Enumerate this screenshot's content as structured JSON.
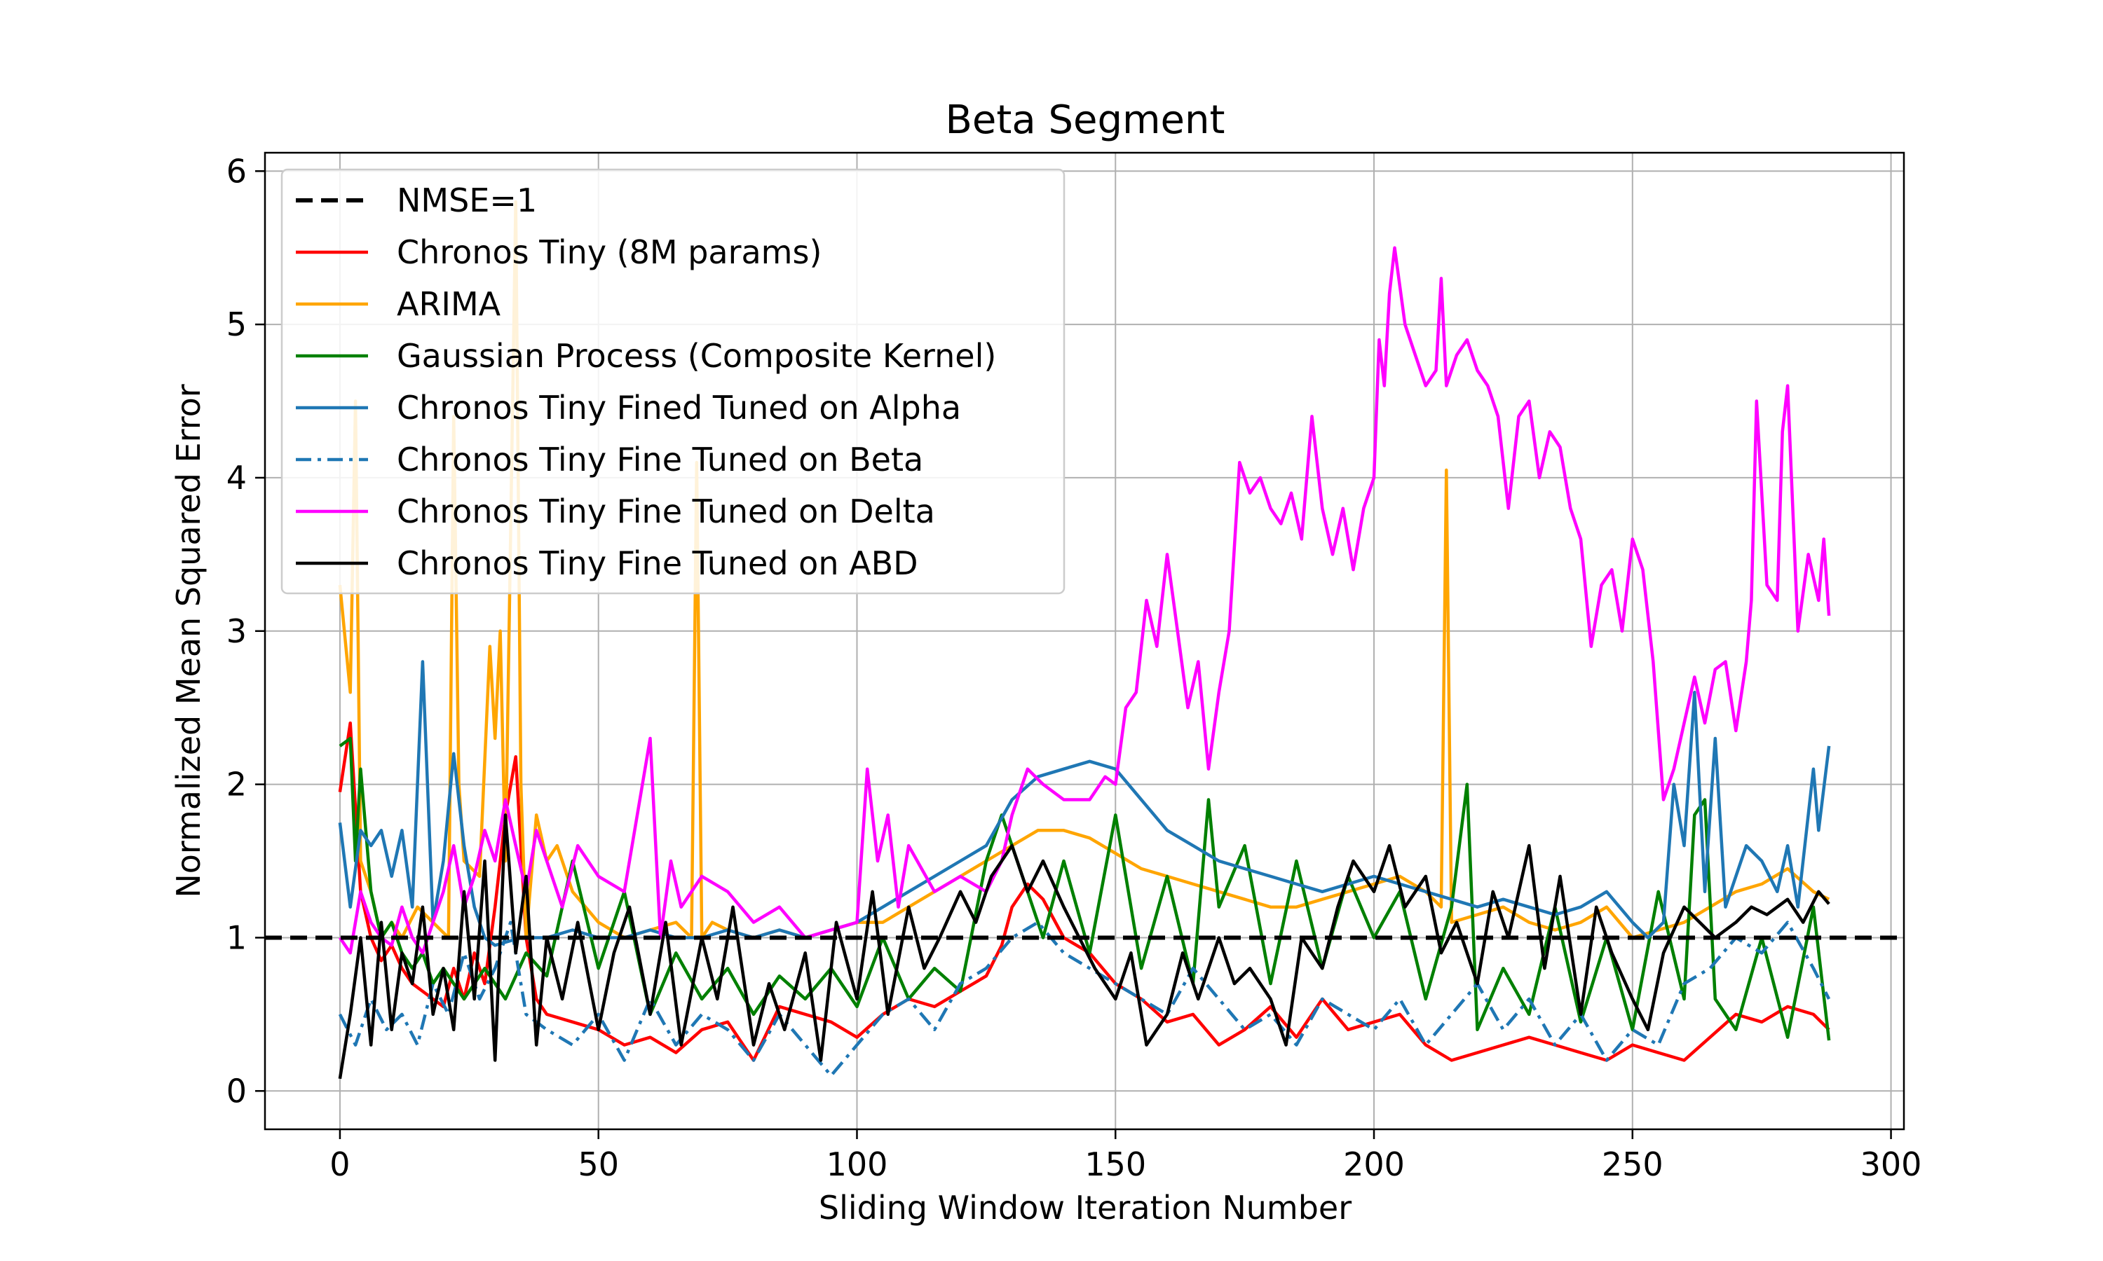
{
  "chart_data": {
    "type": "line",
    "title": "Beta Segment",
    "xlabel": "Sliding Window Iteration Number",
    "ylabel": "Normalized Mean Squared Error",
    "xlim": [
      -14.5,
      302.5
    ],
    "ylim": [
      -0.25,
      6.12
    ],
    "xticks": [
      0,
      50,
      100,
      150,
      200,
      250,
      300
    ],
    "yticks": [
      0,
      1,
      2,
      3,
      4,
      5,
      6
    ],
    "grid": true,
    "legend_position": "upper left",
    "reference_line": {
      "name": "NMSE=1",
      "y": 1,
      "color": "#000000",
      "style": "dashed"
    },
    "series": [
      {
        "name": "Chronos Tiny (8M params)",
        "color": "#ff0000",
        "style": "solid",
        "x": [
          0,
          2,
          4,
          6,
          8,
          10,
          12,
          14,
          16,
          18,
          20,
          22,
          24,
          26,
          28,
          30,
          32,
          34,
          36,
          38,
          40,
          45,
          50,
          55,
          60,
          65,
          70,
          75,
          80,
          85,
          90,
          95,
          100,
          105,
          110,
          115,
          120,
          125,
          128,
          130,
          133,
          136,
          140,
          145,
          150,
          155,
          160,
          165,
          170,
          175,
          180,
          185,
          190,
          195,
          200,
          205,
          210,
          215,
          220,
          225,
          230,
          235,
          240,
          245,
          250,
          255,
          260,
          265,
          270,
          275,
          280,
          285,
          288
        ],
        "y": [
          1.95,
          2.4,
          1.3,
          1.0,
          0.85,
          0.95,
          0.8,
          0.7,
          0.65,
          0.6,
          0.55,
          0.8,
          0.6,
          0.9,
          0.7,
          1.2,
          1.8,
          2.18,
          1.0,
          0.6,
          0.5,
          0.45,
          0.4,
          0.3,
          0.35,
          0.25,
          0.4,
          0.45,
          0.2,
          0.55,
          0.5,
          0.45,
          0.35,
          0.5,
          0.6,
          0.55,
          0.65,
          0.75,
          0.95,
          1.2,
          1.35,
          1.25,
          1.0,
          0.9,
          0.7,
          0.6,
          0.45,
          0.5,
          0.3,
          0.4,
          0.55,
          0.35,
          0.6,
          0.4,
          0.45,
          0.5,
          0.3,
          0.2,
          0.25,
          0.3,
          0.35,
          0.3,
          0.25,
          0.2,
          0.3,
          0.25,
          0.2,
          0.35,
          0.5,
          0.45,
          0.55,
          0.5,
          0.4
        ]
      },
      {
        "name": "ARIMA",
        "color": "#ffa500",
        "style": "solid",
        "x": [
          0,
          2,
          3,
          4,
          6,
          8,
          10,
          12,
          15,
          18,
          21,
          22,
          23,
          24,
          27,
          29,
          30,
          31,
          32,
          33,
          34,
          35,
          36,
          38,
          40,
          42,
          45,
          50,
          55,
          60,
          65,
          68,
          69,
          70,
          71,
          72,
          75,
          80,
          85,
          90,
          95,
          100,
          105,
          110,
          115,
          120,
          125,
          130,
          135,
          140,
          145,
          150,
          155,
          160,
          165,
          170,
          175,
          180,
          185,
          190,
          195,
          200,
          205,
          210,
          213,
          214,
          215,
          220,
          225,
          230,
          235,
          240,
          245,
          250,
          255,
          260,
          265,
          270,
          275,
          280,
          285,
          288
        ],
        "y": [
          3.3,
          2.6,
          4.5,
          1.5,
          1.3,
          1.0,
          1.1,
          1.0,
          1.2,
          1.1,
          1.0,
          4.4,
          2.0,
          1.5,
          1.4,
          2.9,
          2.3,
          3.0,
          1.5,
          3.6,
          5.8,
          2.0,
          1.0,
          1.8,
          1.5,
          1.6,
          1.3,
          1.1,
          1.0,
          1.05,
          1.1,
          1.0,
          4.1,
          1.0,
          1.05,
          1.1,
          1.05,
          1.0,
          1.05,
          1.0,
          1.05,
          1.1,
          1.1,
          1.2,
          1.3,
          1.4,
          1.5,
          1.6,
          1.7,
          1.7,
          1.65,
          1.55,
          1.45,
          1.4,
          1.35,
          1.3,
          1.25,
          1.2,
          1.2,
          1.25,
          1.3,
          1.35,
          1.4,
          1.3,
          1.2,
          4.05,
          1.1,
          1.15,
          1.2,
          1.1,
          1.05,
          1.1,
          1.2,
          1.0,
          1.05,
          1.1,
          1.2,
          1.3,
          1.35,
          1.45,
          1.3,
          1.25
        ]
      },
      {
        "name": "Gaussian Process (Composite Kernel)",
        "color": "#008000",
        "style": "solid",
        "x": [
          0,
          2,
          3,
          4,
          6,
          8,
          10,
          12,
          14,
          16,
          18,
          20,
          24,
          28,
          32,
          36,
          40,
          45,
          50,
          55,
          60,
          65,
          70,
          75,
          80,
          85,
          90,
          95,
          100,
          105,
          110,
          115,
          120,
          125,
          128,
          130,
          133,
          136,
          140,
          145,
          150,
          155,
          160,
          165,
          168,
          170,
          175,
          180,
          185,
          190,
          195,
          200,
          205,
          210,
          215,
          218,
          220,
          225,
          230,
          235,
          240,
          245,
          250,
          255,
          260,
          262,
          264,
          266,
          270,
          275,
          280,
          285,
          288
        ],
        "y": [
          2.25,
          2.3,
          1.5,
          2.1,
          1.3,
          1.0,
          1.1,
          0.9,
          0.8,
          0.9,
          0.7,
          0.8,
          0.6,
          0.8,
          0.6,
          0.9,
          0.75,
          1.5,
          0.8,
          1.3,
          0.5,
          0.9,
          0.6,
          0.8,
          0.5,
          0.75,
          0.6,
          0.8,
          0.55,
          1.0,
          0.6,
          0.8,
          0.65,
          1.5,
          1.8,
          1.6,
          1.3,
          1.0,
          1.5,
          0.9,
          1.8,
          0.8,
          1.4,
          0.7,
          1.9,
          1.2,
          1.6,
          0.7,
          1.5,
          0.8,
          1.4,
          1.0,
          1.3,
          0.6,
          1.2,
          2.0,
          0.4,
          0.8,
          0.5,
          1.2,
          0.45,
          1.0,
          0.4,
          1.3,
          0.6,
          1.8,
          1.9,
          0.6,
          0.4,
          1.0,
          0.35,
          1.2,
          0.33
        ]
      },
      {
        "name": "Chronos Tiny Fined Tuned on Alpha",
        "color": "#1f77b4",
        "style": "solid",
        "x": [
          0,
          2,
          4,
          6,
          8,
          10,
          12,
          14,
          16,
          18,
          20,
          22,
          24,
          26,
          28,
          30,
          35,
          40,
          45,
          50,
          55,
          60,
          65,
          70,
          75,
          80,
          85,
          90,
          95,
          100,
          105,
          110,
          115,
          120,
          125,
          130,
          135,
          140,
          145,
          150,
          155,
          160,
          165,
          170,
          175,
          180,
          185,
          190,
          195,
          200,
          205,
          210,
          215,
          220,
          225,
          230,
          235,
          240,
          245,
          250,
          253,
          256,
          258,
          260,
          262,
          264,
          266,
          268,
          270,
          272,
          275,
          278,
          280,
          282,
          285,
          286,
          288
        ],
        "y": [
          1.75,
          1.2,
          1.7,
          1.6,
          1.7,
          1.4,
          1.7,
          1.2,
          2.8,
          1.1,
          1.5,
          2.2,
          1.6,
          1.2,
          1.0,
          0.95,
          1.0,
          1.0,
          1.05,
          1.0,
          1.0,
          1.05,
          1.0,
          1.0,
          1.05,
          1.0,
          1.05,
          1.0,
          1.05,
          1.1,
          1.2,
          1.3,
          1.4,
          1.5,
          1.6,
          1.9,
          2.05,
          2.1,
          2.15,
          2.1,
          1.9,
          1.7,
          1.6,
          1.5,
          1.45,
          1.4,
          1.35,
          1.3,
          1.35,
          1.4,
          1.35,
          1.3,
          1.25,
          1.2,
          1.25,
          1.2,
          1.15,
          1.2,
          1.3,
          1.1,
          1.0,
          1.1,
          2.0,
          1.6,
          2.6,
          1.3,
          2.3,
          1.2,
          1.4,
          1.6,
          1.5,
          1.3,
          1.6,
          1.2,
          2.1,
          1.7,
          2.25
        ]
      },
      {
        "name": "Chronos Tiny Fine Tuned on Beta",
        "color": "#1f77b4",
        "style": "dashdot",
        "x": [
          0,
          3,
          6,
          9,
          12,
          15,
          18,
          21,
          24,
          27,
          30,
          33,
          36,
          40,
          45,
          50,
          55,
          60,
          65,
          70,
          75,
          80,
          85,
          90,
          95,
          100,
          105,
          110,
          115,
          120,
          125,
          130,
          135,
          140,
          145,
          150,
          155,
          160,
          165,
          170,
          175,
          180,
          185,
          190,
          195,
          200,
          205,
          210,
          215,
          220,
          225,
          230,
          235,
          240,
          245,
          250,
          255,
          260,
          265,
          270,
          275,
          280,
          285,
          288
        ],
        "y": [
          0.5,
          0.3,
          0.6,
          0.4,
          0.5,
          0.3,
          0.7,
          0.5,
          0.9,
          0.6,
          0.8,
          1.1,
          0.5,
          0.4,
          0.3,
          0.5,
          0.2,
          0.6,
          0.3,
          0.5,
          0.4,
          0.2,
          0.5,
          0.3,
          0.1,
          0.3,
          0.5,
          0.6,
          0.4,
          0.7,
          0.8,
          1.0,
          1.1,
          0.9,
          0.8,
          0.7,
          0.6,
          0.5,
          0.8,
          0.6,
          0.4,
          0.5,
          0.3,
          0.6,
          0.5,
          0.4,
          0.6,
          0.3,
          0.5,
          0.7,
          0.4,
          0.6,
          0.3,
          0.5,
          0.2,
          0.4,
          0.3,
          0.7,
          0.8,
          1.0,
          0.9,
          1.1,
          0.8,
          0.6
        ]
      },
      {
        "name": "Chronos Tiny Fine Tuned on Delta",
        "color": "#ff00ff",
        "style": "solid",
        "x": [
          0,
          2,
          4,
          6,
          8,
          10,
          12,
          14,
          16,
          18,
          20,
          22,
          24,
          26,
          28,
          30,
          32,
          34,
          36,
          38,
          40,
          43,
          46,
          50,
          55,
          60,
          62,
          64,
          66,
          70,
          75,
          80,
          85,
          90,
          95,
          100,
          102,
          104,
          106,
          108,
          110,
          115,
          120,
          125,
          128,
          130,
          133,
          136,
          140,
          145,
          148,
          150,
          152,
          154,
          156,
          158,
          160,
          162,
          164,
          166,
          168,
          170,
          172,
          174,
          176,
          178,
          180,
          182,
          184,
          186,
          188,
          190,
          192,
          194,
          196,
          198,
          200,
          201,
          202,
          203,
          204,
          206,
          208,
          210,
          212,
          213,
          214,
          216,
          218,
          220,
          222,
          224,
          226,
          228,
          230,
          232,
          234,
          236,
          238,
          240,
          242,
          244,
          246,
          248,
          250,
          252,
          254,
          256,
          258,
          260,
          262,
          264,
          266,
          268,
          270,
          272,
          273,
          274,
          276,
          278,
          279,
          280,
          282,
          284,
          286,
          287,
          288
        ],
        "y": [
          1.0,
          0.9,
          1.3,
          1.1,
          1.0,
          0.95,
          1.2,
          1.0,
          0.9,
          1.1,
          1.3,
          1.6,
          1.2,
          1.4,
          1.7,
          1.5,
          1.9,
          1.6,
          1.3,
          1.7,
          1.5,
          1.2,
          1.6,
          1.4,
          1.3,
          2.3,
          1.0,
          1.5,
          1.2,
          1.4,
          1.3,
          1.1,
          1.2,
          1.0,
          1.05,
          1.1,
          2.1,
          1.5,
          1.8,
          1.2,
          1.6,
          1.3,
          1.4,
          1.3,
          1.5,
          1.8,
          2.1,
          2.0,
          1.9,
          1.9,
          2.05,
          2.0,
          2.5,
          2.6,
          3.2,
          2.9,
          3.5,
          3.0,
          2.5,
          2.8,
          2.1,
          2.6,
          3.0,
          4.1,
          3.9,
          4.0,
          3.8,
          3.7,
          3.9,
          3.6,
          4.4,
          3.8,
          3.5,
          3.8,
          3.4,
          3.8,
          4.0,
          4.9,
          4.6,
          5.2,
          5.5,
          5.0,
          4.8,
          4.6,
          4.7,
          5.3,
          4.6,
          4.8,
          4.9,
          4.7,
          4.6,
          4.4,
          3.8,
          4.4,
          4.5,
          4.0,
          4.3,
          4.2,
          3.8,
          3.6,
          2.9,
          3.3,
          3.4,
          3.0,
          3.6,
          3.4,
          2.8,
          1.9,
          2.1,
          2.4,
          2.7,
          2.4,
          2.75,
          2.8,
          2.35,
          2.8,
          3.2,
          4.5,
          3.3,
          3.2,
          4.3,
          4.6,
          3.0,
          3.5,
          3.2,
          3.6,
          3.1
        ]
      },
      {
        "name": "Chronos Tiny Fine Tuned on ABD",
        "color": "#000000",
        "style": "solid",
        "x": [
          0,
          2,
          4,
          6,
          8,
          10,
          12,
          14,
          16,
          18,
          20,
          22,
          24,
          26,
          28,
          30,
          32,
          34,
          36,
          38,
          40,
          43,
          46,
          50,
          53,
          56,
          60,
          63,
          66,
          70,
          73,
          76,
          80,
          83,
          86,
          90,
          93,
          96,
          100,
          103,
          106,
          110,
          113,
          116,
          120,
          123,
          126,
          130,
          133,
          136,
          140,
          143,
          146,
          150,
          153,
          156,
          160,
          163,
          166,
          170,
          173,
          176,
          180,
          183,
          186,
          190,
          193,
          196,
          200,
          203,
          206,
          210,
          213,
          216,
          220,
          223,
          226,
          230,
          233,
          236,
          240,
          243,
          246,
          250,
          253,
          256,
          260,
          263,
          266,
          270,
          273,
          276,
          280,
          283,
          286,
          288
        ],
        "y": [
          0.08,
          0.5,
          1.0,
          0.3,
          1.1,
          0.4,
          0.9,
          0.7,
          1.2,
          0.5,
          0.8,
          0.4,
          1.3,
          0.6,
          1.5,
          0.2,
          1.8,
          0.9,
          1.4,
          0.3,
          1.0,
          0.6,
          1.1,
          0.4,
          0.9,
          1.2,
          0.5,
          1.1,
          0.3,
          1.0,
          0.6,
          1.2,
          0.3,
          0.7,
          0.4,
          0.9,
          0.2,
          1.1,
          0.6,
          1.3,
          0.5,
          1.2,
          0.8,
          1.0,
          1.3,
          1.1,
          1.4,
          1.6,
          1.3,
          1.5,
          1.2,
          1.0,
          0.8,
          0.6,
          0.9,
          0.3,
          0.5,
          0.9,
          0.6,
          1.0,
          0.7,
          0.8,
          0.6,
          0.3,
          1.0,
          0.8,
          1.2,
          1.5,
          1.3,
          1.6,
          1.2,
          1.4,
          0.9,
          1.1,
          0.7,
          1.3,
          1.0,
          1.6,
          0.8,
          1.4,
          0.5,
          1.2,
          0.9,
          0.6,
          0.4,
          0.9,
          1.2,
          1.1,
          1.0,
          1.1,
          1.2,
          1.15,
          1.25,
          1.1,
          1.3,
          1.22
        ]
      }
    ]
  }
}
